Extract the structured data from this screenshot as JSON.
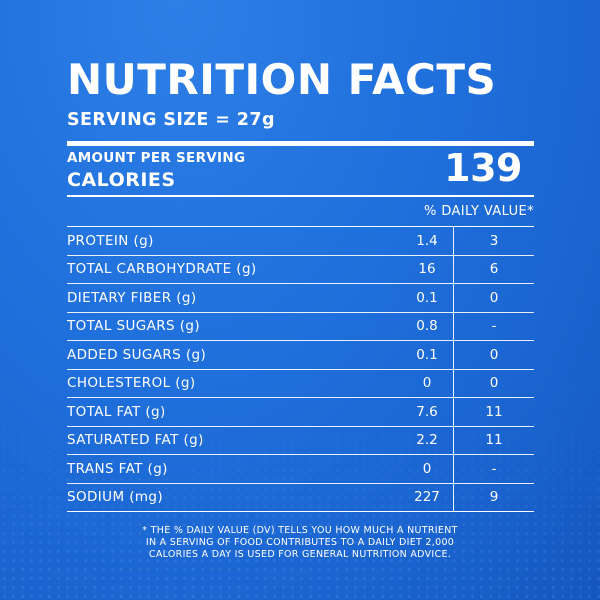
{
  "colors": {
    "background": "#1f6fdc",
    "text": "#ffffff"
  },
  "title": "NUTRITION FACTS",
  "serving_size": "SERVING SIZE = 27g",
  "amount_per_serving": "AMOUNT PER SERVING",
  "calories_label": "CALORIES",
  "calories_value": "139",
  "daily_value_header": "% DAILY VALUE*",
  "nutrients": [
    {
      "label": "PROTEIN (g)",
      "amount": "1.4",
      "dv": "3"
    },
    {
      "label": "TOTAL CARBOHYDRATE (g)",
      "amount": "16",
      "dv": "6"
    },
    {
      "label": "DIETARY FIBER (g)",
      "amount": "0.1",
      "dv": "0"
    },
    {
      "label": "TOTAL SUGARS (g)",
      "amount": "0.8",
      "dv": "-"
    },
    {
      "label": "ADDED SUGARS (g)",
      "amount": "0.1",
      "dv": "0"
    },
    {
      "label": "CHOLESTEROL (g)",
      "amount": "0",
      "dv": "0"
    },
    {
      "label": "TOTAL FAT (g)",
      "amount": "7.6",
      "dv": "11"
    },
    {
      "label": "SATURATED FAT (g)",
      "amount": "2.2",
      "dv": "11"
    },
    {
      "label": "TRANS FAT (g)",
      "amount": "0",
      "dv": "-"
    },
    {
      "label": "SODIUM (mg)",
      "amount": "227",
      "dv": "9"
    }
  ],
  "footnote": [
    "* THE % DAILY VALUE (DV) TELLS YOU HOW MUCH A NUTRIENT",
    "IN A SERVING OF FOOD CONTRIBUTES TO A DAILY DIET 2,000",
    "CALORIES A DAY IS USED FOR GENERAL NUTRITION ADVICE."
  ]
}
